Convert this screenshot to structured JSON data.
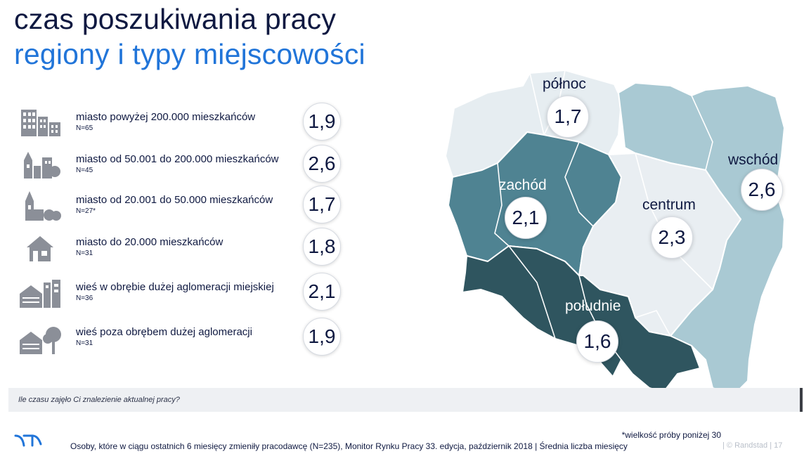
{
  "header": {
    "title": "czas poszukiwania pracy",
    "subtitle": "regiony i typy miejscowości"
  },
  "rows": [
    {
      "label": "miasto powyżej 200.000 mieszkańców",
      "sample": "N=65",
      "value": "1,9",
      "icon": "city-buildings-icon"
    },
    {
      "label": "miasto od 50.001 do 200.000 mieszkańców",
      "sample": "N=45",
      "value": "2,6",
      "icon": "town-icon"
    },
    {
      "label": "miasto od 20.001 do 50.000 mieszkańców",
      "sample": "N=27*",
      "value": "1,7",
      "icon": "church-town-icon"
    },
    {
      "label": "miasto do 20.000 mieszkańców",
      "sample": "N=31",
      "value": "1,8",
      "icon": "house-icon"
    },
    {
      "label": "wieś w obrębie dużej aglomeracji miejskiej",
      "sample": "N=36",
      "value": "2,1",
      "icon": "barn-and-buildings-icon"
    },
    {
      "label": "wieś poza obrębem dużej aglomeracji",
      "sample": "N=31",
      "value": "1,9",
      "icon": "barn-and-tree-icon"
    }
  ],
  "map": {
    "regions": [
      {
        "name": "północ",
        "value": "1,7"
      },
      {
        "name": "wschód",
        "value": "2,6"
      },
      {
        "name": "zachód",
        "value": "2,1"
      },
      {
        "name": "centrum",
        "value": "2,3"
      },
      {
        "name": "południe",
        "value": "1,6"
      }
    ],
    "colors": {
      "north": "#e6edf1",
      "east": "#a9c9d3",
      "west": "#4f8392",
      "center": "#e9eef2",
      "south": "#2f555f",
      "border": "#ffffff"
    }
  },
  "question": "Ile czasu zajęło Ci znalezienie aktualnej pracy?",
  "footer": {
    "note": "*wielkość próby poniżej 30",
    "source": "Osoby, które w ciągu ostatnich 6 miesięcy zmieniły pracodawcę (N=235), Monitor Rynku Pracy 33. edycja, październik 2018 | Średnia liczba miesięcy",
    "brand": "| © Randstad  |  17",
    "logo": "randstad-logo-icon"
  }
}
